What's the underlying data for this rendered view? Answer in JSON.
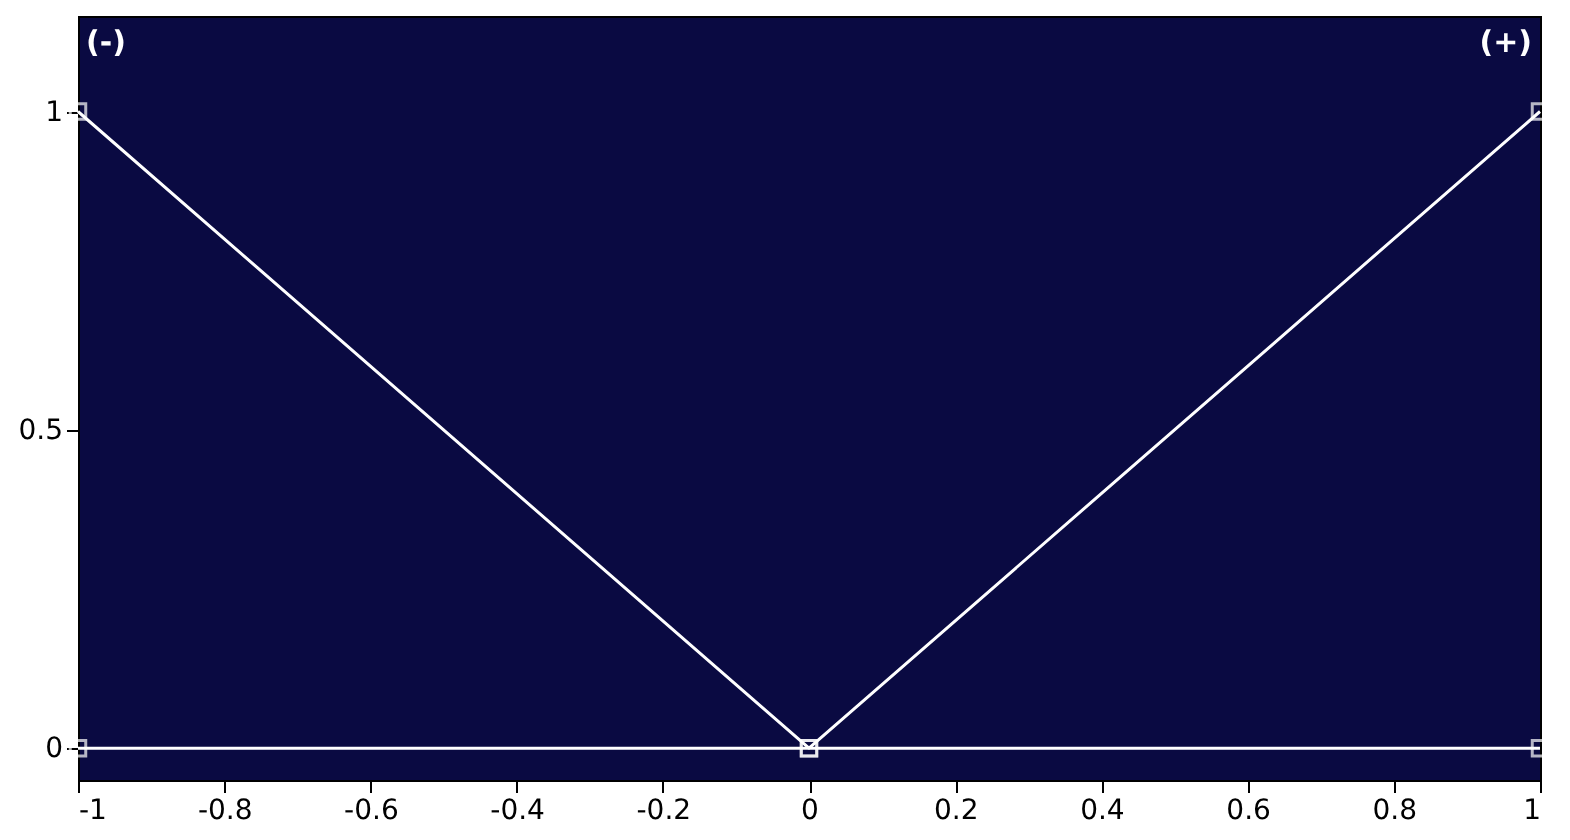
{
  "chart_data": {
    "type": "line",
    "x": [
      -1,
      0,
      1
    ],
    "series": [
      {
        "color": "#ffffff",
        "values": [
          1,
          0,
          1
        ]
      },
      {
        "color": "#ffffff",
        "values": [
          0,
          0,
          0
        ]
      }
    ],
    "xlim": [
      -1,
      1
    ],
    "xticks": [
      -1,
      -0.8,
      -0.6,
      -0.4,
      -0.2,
      0,
      0.2,
      0.4,
      0.6,
      0.8,
      1
    ],
    "ylim": [
      -0.05,
      1.15
    ],
    "yticks": [
      0,
      0.5,
      1
    ],
    "annotations": [
      "(-)",
      "(+)"
    ],
    "marker": "square",
    "line_style": "solid",
    "grid": false,
    "legend": false
  }
}
